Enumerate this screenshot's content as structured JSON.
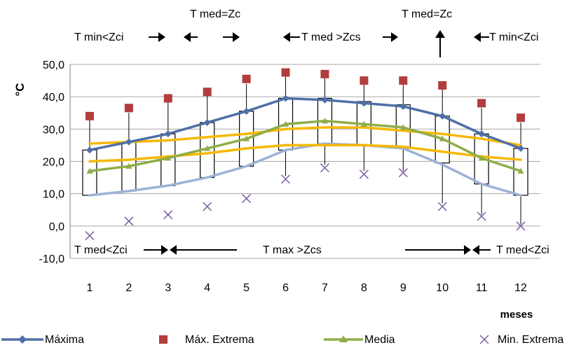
{
  "chart_data": {
    "type": "line",
    "title": "",
    "xlabel": "meses",
    "ylabel": "°C",
    "ylim": [
      -10,
      50
    ],
    "y_ticks": [
      "-10,0",
      "0,0",
      "10,0",
      "20,0",
      "30,0",
      "40,0",
      "50,0"
    ],
    "categories": [
      "1",
      "2",
      "3",
      "4",
      "5",
      "6",
      "7",
      "8",
      "9",
      "10",
      "11",
      "12"
    ],
    "grid": "horizontal",
    "legend_position": "bottom",
    "series": [
      {
        "name": "Máxima",
        "color": "#4f6fa6",
        "values": [
          23.5,
          26,
          28.5,
          32,
          35.5,
          39.5,
          39,
          38,
          37,
          34,
          28.5,
          24
        ]
      },
      {
        "name": "Máx. Extrema",
        "color": "#b33c3c",
        "values": [
          34,
          36.5,
          39.5,
          41.5,
          45.5,
          47.5,
          47,
          45,
          45,
          43.5,
          38,
          33.5
        ]
      },
      {
        "name": "Media",
        "color": "#8fad48",
        "values": [
          17,
          18.5,
          21,
          24,
          27,
          31.5,
          32.5,
          31.5,
          30.5,
          27,
          21,
          17
        ]
      },
      {
        "name": "Min. Extrema",
        "color": "#7b5ea3",
        "values": [
          -3,
          1.5,
          3.5,
          6,
          8.5,
          14.5,
          18,
          16,
          16.5,
          6,
          3,
          0
        ]
      }
    ],
    "unlabeled_lines": [
      {
        "color": "#9bb3d9",
        "values": [
          9.5,
          10.8,
          12.5,
          15,
          18.5,
          23.5,
          25.5,
          25,
          24,
          19,
          13,
          9.5
        ]
      },
      {
        "color": "#f5b800",
        "values": [
          25.5,
          26,
          26.5,
          27.5,
          28.5,
          30,
          30.5,
          30.5,
          29.5,
          28.5,
          27,
          25
        ]
      },
      {
        "color": "#f5b800",
        "values": [
          20,
          20.5,
          21.5,
          22.5,
          24,
          25,
          25,
          25,
          24.5,
          23,
          21.5,
          20.5
        ]
      }
    ],
    "boxes": [
      {
        "low": 9.5,
        "high": 23.5,
        "whisker_top": 33
      },
      {
        "low": 10.8,
        "high": 26,
        "whisker_top": 35
      },
      {
        "low": 12.5,
        "high": 28.5,
        "whisker_top": 39
      },
      {
        "low": 15,
        "high": 32,
        "whisker_top": 40.5
      },
      {
        "low": 18.5,
        "high": 35.5,
        "whisker_top": 44
      },
      {
        "low": 23.5,
        "high": 39.5,
        "whisker_top": 47,
        "whisker_bottom": 15.5
      },
      {
        "low": 25.5,
        "high": 39.5,
        "whisker_top": 47,
        "whisker_bottom": 19
      },
      {
        "low": 25,
        "high": 38.5,
        "whisker_top": 45,
        "whisker_bottom": 17
      },
      {
        "low": 24,
        "high": 37.5,
        "whisker_top": 45,
        "whisker_bottom": 17
      },
      {
        "low": 19.5,
        "high": 34,
        "whisker_top": 43,
        "whisker_bottom": 7
      },
      {
        "low": 13,
        "high": 28.5,
        "whisker_top": 36.5,
        "whisker_bottom": 3.5
      },
      {
        "low": 9.5,
        "high": 24,
        "whisker_top": 32,
        "whisker_bottom": 0.5
      }
    ],
    "annotations": {
      "tmin_left": "T min<Zci",
      "tmed_eq_top": "T med=Zc",
      "tmed_gt": "T med >Zcs",
      "tmed_eq_right": "T med=Zc",
      "tmin_right": "T min<Zci",
      "tmed_lt_left": "T med<Zci",
      "tmax_gt": "T max >Zcs",
      "tmed_lt_right": "T med<Zci"
    }
  }
}
